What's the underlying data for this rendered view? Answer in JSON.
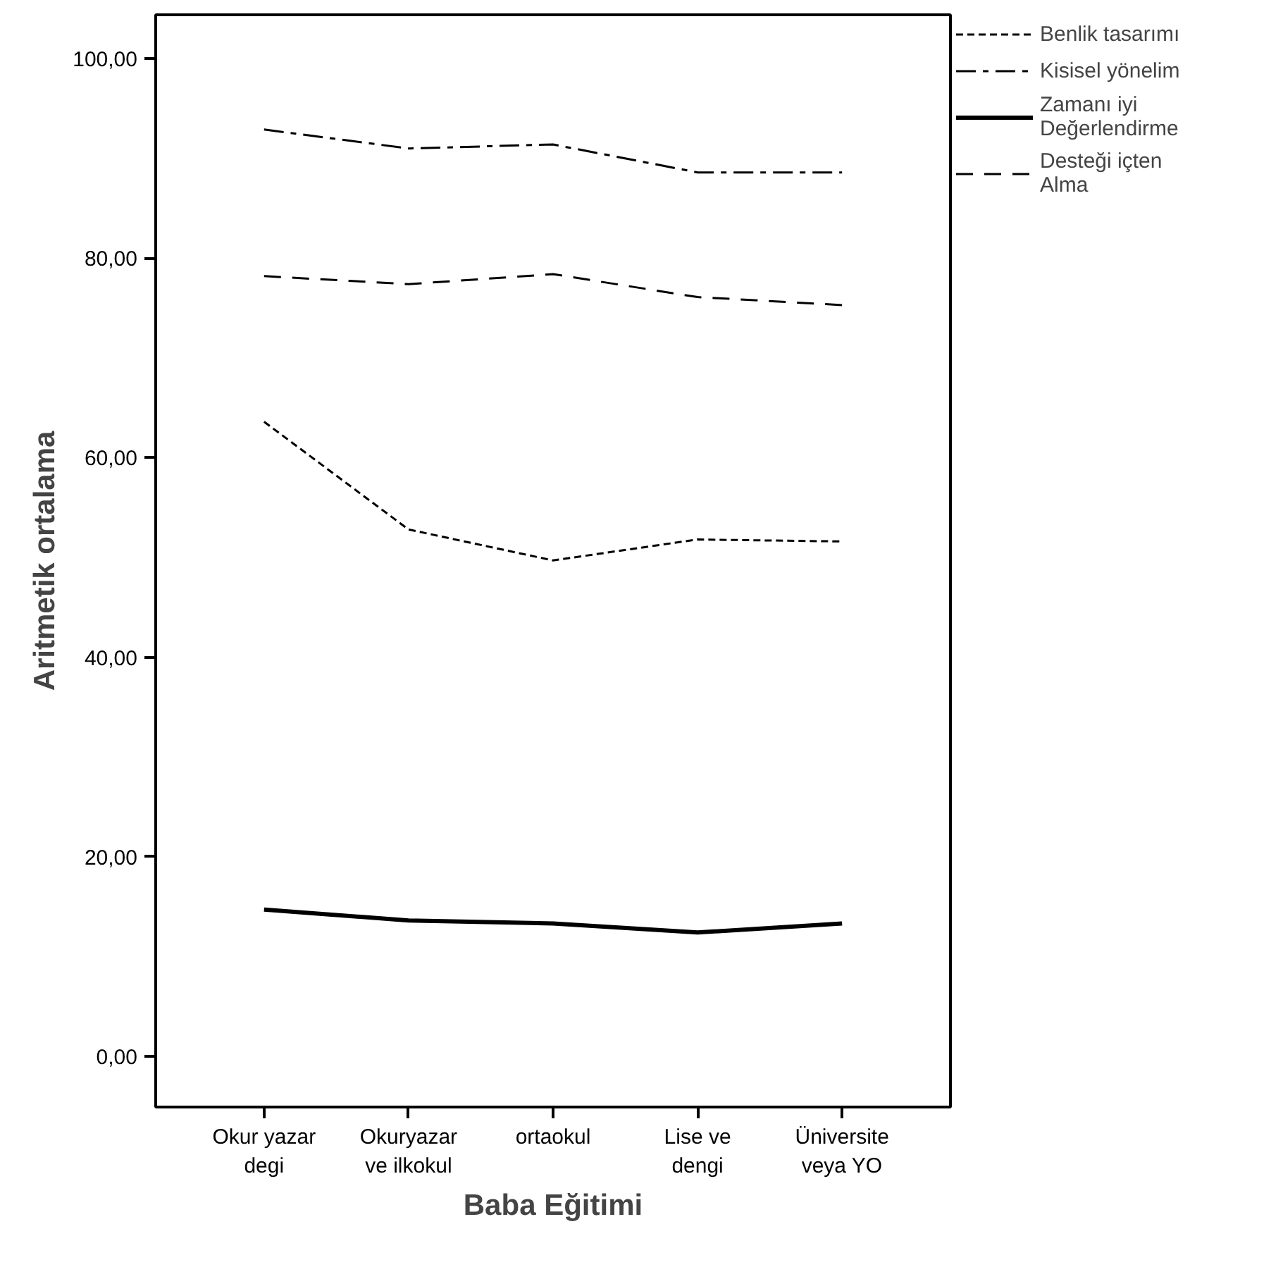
{
  "chart_data": {
    "type": "line",
    "xlabel": "Baba Eğitimi",
    "ylabel": "Aritmetik ortalama",
    "categories": [
      "Okur yazar\ndegi",
      "Okuryazar\nve ilkokul",
      "ortaokul",
      "Lise ve\ndengi",
      "Üniversite\nveya YO"
    ],
    "series": [
      {
        "name": "Benlik tasarımı",
        "color": "#000000",
        "line_style": "dotted",
        "values": [
          63.6,
          52.8,
          49.7,
          51.8,
          51.6
        ]
      },
      {
        "name": "Kisisel yönelim",
        "color": "#000000",
        "line_style": "dashdot",
        "values": [
          92.9,
          91.0,
          91.4,
          88.6,
          88.6
        ]
      },
      {
        "name": "Zamanı iyi\nDeğerlendirme",
        "color": "#000000",
        "line_style": "solid",
        "values": [
          14.7,
          13.6,
          13.3,
          12.4,
          13.3
        ]
      },
      {
        "name": "Desteği içten\nAlma",
        "color": "#000000",
        "line_style": "dashed",
        "values": [
          78.2,
          77.4,
          78.4,
          76.1,
          75.3
        ]
      }
    ],
    "ylim": [
      -5.1,
      104.4
    ],
    "yticks": [
      {
        "value": 0,
        "label": "0,00"
      },
      {
        "value": 20,
        "label": "20,00"
      },
      {
        "value": 40,
        "label": "40,00"
      },
      {
        "value": 60,
        "label": "60,00"
      },
      {
        "value": 80,
        "label": "80,00"
      },
      {
        "value": 100,
        "label": "100,00"
      }
    ],
    "grid": false,
    "legend": "top right",
    "marker": "none"
  }
}
